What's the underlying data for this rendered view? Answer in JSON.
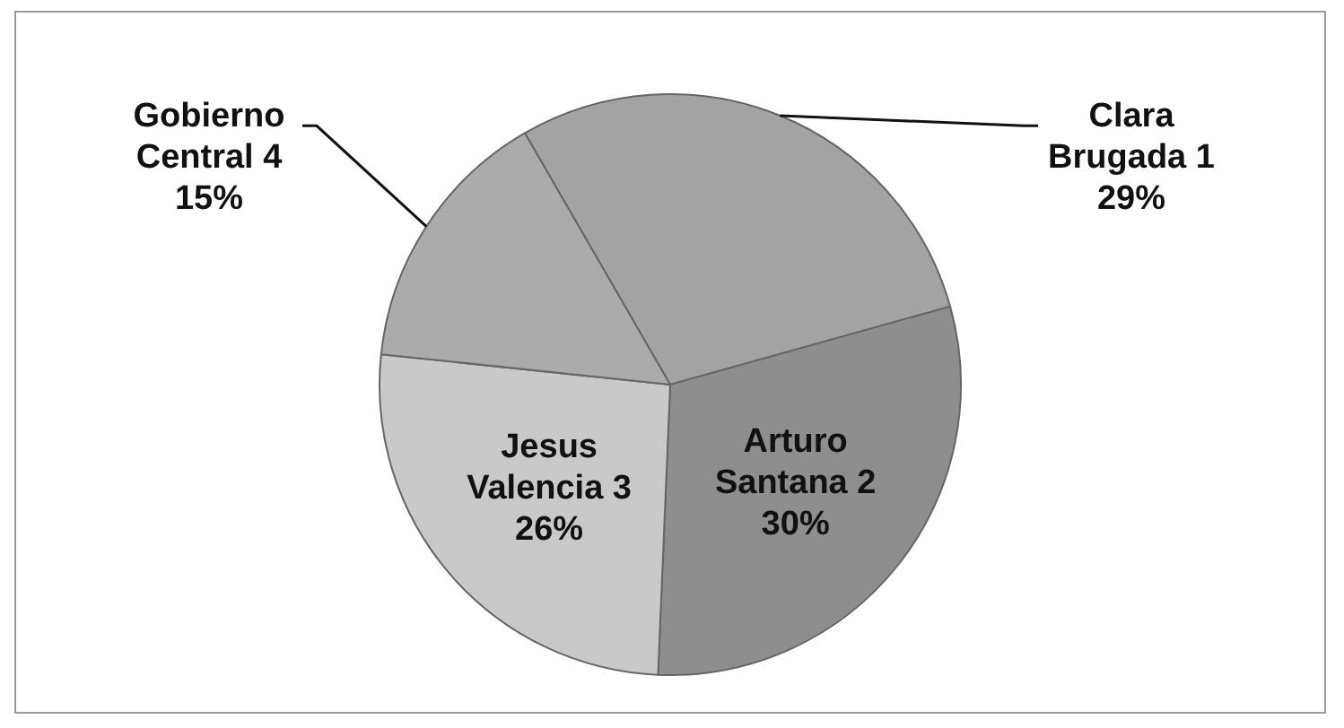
{
  "chart_data": {
    "type": "pie",
    "categories": [
      "Clara Brugada 1",
      "Arturo Santana 2",
      "Jesus Valencia 3",
      "Gobierno Central 4"
    ],
    "values": [
      29,
      30,
      26,
      15
    ],
    "value_labels": [
      "29%",
      "30%",
      "26%",
      "15%"
    ],
    "colors": [
      "#a3a3a3",
      "#8e8e8e",
      "#c9c9c9",
      "#ababab"
    ],
    "legend": false
  }
}
